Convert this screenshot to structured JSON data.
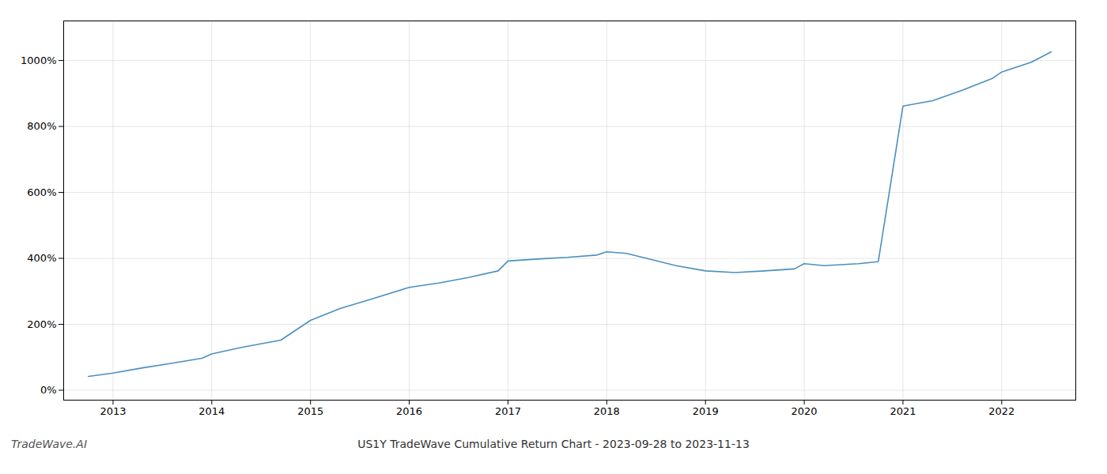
{
  "chart_data": {
    "type": "line",
    "title": "US1Y TradeWave Cumulative Return Chart - 2023-09-28 to 2023-11-13",
    "annotations": [
      "TradeWave.AI"
    ],
    "x": [
      2012.75,
      2013.0,
      2013.3,
      2013.6,
      2013.9,
      2014.0,
      2014.3,
      2014.7,
      2015.0,
      2015.3,
      2015.6,
      2016.0,
      2016.3,
      2016.6,
      2016.9,
      2017.0,
      2017.3,
      2017.6,
      2017.9,
      2018.0,
      2018.2,
      2018.5,
      2018.7,
      2019.0,
      2019.3,
      2019.6,
      2019.9,
      2020.0,
      2020.2,
      2020.55,
      2020.75,
      2021.0,
      2021.3,
      2021.6,
      2021.9,
      2022.0,
      2022.3,
      2022.5
    ],
    "values": [
      42,
      52,
      68,
      82,
      97,
      110,
      130,
      152,
      212,
      248,
      275,
      312,
      325,
      342,
      362,
      392,
      398,
      403,
      410,
      420,
      415,
      393,
      378,
      362,
      357,
      362,
      368,
      384,
      378,
      384,
      390,
      862,
      878,
      910,
      945,
      965,
      995,
      1026
    ],
    "color": "#4a8fc0",
    "xlim": [
      2012.5,
      2022.75
    ],
    "ylim": [
      -30,
      1120
    ],
    "xticks": [
      2013,
      2014,
      2015,
      2016,
      2017,
      2018,
      2019,
      2020,
      2021,
      2022
    ],
    "yticks": [
      {
        "value": 0,
        "label": "0%"
      },
      {
        "value": 200,
        "label": "200%"
      },
      {
        "value": 400,
        "label": "400%"
      },
      {
        "value": 600,
        "label": "600%"
      },
      {
        "value": 800,
        "label": "800%"
      },
      {
        "value": 1000,
        "label": "1000%"
      }
    ],
    "grid": true
  }
}
